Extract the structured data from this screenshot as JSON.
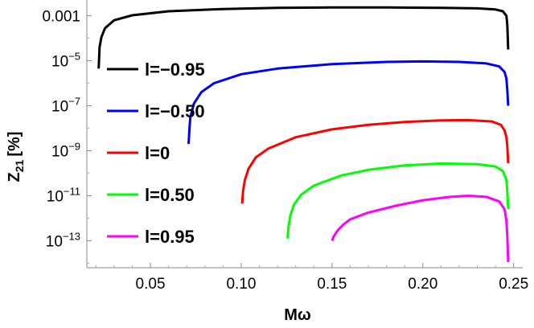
{
  "chart_data": {
    "type": "line",
    "xlabel": "Mω",
    "ylabel_main": "Z",
    "ylabel_sub": "21",
    "ylabel_unit": "[%]",
    "xlim": [
      0.015,
      0.255
    ],
    "ylim_log10": [
      -14.2,
      -2.3
    ],
    "y_scale": "log",
    "x_ticks": [
      {
        "value": 0.05,
        "label": "0.05"
      },
      {
        "value": 0.1,
        "label": "0.10"
      },
      {
        "value": 0.15,
        "label": "0.15"
      },
      {
        "value": 0.2,
        "label": "0.20"
      },
      {
        "value": 0.25,
        "label": "0.25"
      }
    ],
    "y_ticks": [
      {
        "exp": -3,
        "label": "0.001",
        "base": "",
        "sup": ""
      },
      {
        "exp": -5,
        "label": "",
        "base": "10",
        "sup": "−5"
      },
      {
        "exp": -7,
        "label": "",
        "base": "10",
        "sup": "−7"
      },
      {
        "exp": -9,
        "label": "",
        "base": "10",
        "sup": "−9"
      },
      {
        "exp": -11,
        "label": "",
        "base": "10",
        "sup": "−11"
      },
      {
        "exp": -13,
        "label": "",
        "base": "10",
        "sup": "−13"
      }
    ],
    "legend_position": "left-inside",
    "series": [
      {
        "name": "l=−0.95",
        "color": "#000000",
        "x": [
          0.0215,
          0.022,
          0.023,
          0.025,
          0.03,
          0.04,
          0.06,
          0.09,
          0.12,
          0.15,
          0.18,
          0.21,
          0.23,
          0.24,
          0.244,
          0.246,
          0.2465,
          0.247
        ],
        "log10y": [
          -5.35,
          -4.4,
          -3.95,
          -3.55,
          -3.2,
          -2.98,
          -2.8,
          -2.7,
          -2.65,
          -2.63,
          -2.63,
          -2.65,
          -2.67,
          -2.72,
          -2.8,
          -3.0,
          -3.4,
          -4.5
        ]
      },
      {
        "name": "l=−0.50",
        "color": "#0000ff",
        "x": [
          0.071,
          0.0715,
          0.072,
          0.074,
          0.078,
          0.085,
          0.1,
          0.12,
          0.15,
          0.18,
          0.2,
          0.22,
          0.235,
          0.242,
          0.245,
          0.246,
          0.2465,
          0.247
        ],
        "log10y": [
          -8.7,
          -8.0,
          -7.5,
          -6.9,
          -6.4,
          -6.0,
          -5.6,
          -5.35,
          -5.15,
          -5.05,
          -5.03,
          -5.05,
          -5.12,
          -5.25,
          -5.5,
          -5.8,
          -6.3,
          -7.0
        ]
      },
      {
        "name": "l=0",
        "color": "#ff0000",
        "x": [
          0.1005,
          0.101,
          0.102,
          0.104,
          0.108,
          0.115,
          0.13,
          0.15,
          0.17,
          0.19,
          0.21,
          0.225,
          0.238,
          0.243,
          0.245,
          0.246,
          0.2465,
          0.247
        ],
        "log10y": [
          -11.35,
          -10.8,
          -10.3,
          -9.8,
          -9.3,
          -8.9,
          -8.4,
          -8.05,
          -7.85,
          -7.72,
          -7.65,
          -7.64,
          -7.7,
          -7.85,
          -8.1,
          -8.4,
          -8.8,
          -9.55
        ]
      },
      {
        "name": "l=0.50",
        "color": "#00ff00",
        "x": [
          0.1255,
          0.126,
          0.127,
          0.129,
          0.133,
          0.14,
          0.155,
          0.17,
          0.19,
          0.21,
          0.23,
          0.24,
          0.244,
          0.246,
          0.2465,
          0.247
        ],
        "log10y": [
          -12.9,
          -12.4,
          -11.9,
          -11.4,
          -10.95,
          -10.55,
          -10.1,
          -9.85,
          -9.65,
          -9.57,
          -9.6,
          -9.7,
          -9.9,
          -10.3,
          -10.8,
          -11.6
        ]
      },
      {
        "name": "l=0.95",
        "color": "#ff00ff",
        "x": [
          0.15,
          0.151,
          0.153,
          0.156,
          0.16,
          0.17,
          0.185,
          0.2,
          0.215,
          0.225,
          0.235,
          0.242,
          0.245,
          0.246,
          0.2465,
          0.247
        ],
        "log10y": [
          -13.0,
          -12.8,
          -12.55,
          -12.3,
          -12.05,
          -11.75,
          -11.45,
          -11.2,
          -11.05,
          -11.0,
          -11.05,
          -11.25,
          -11.6,
          -12.1,
          -12.8,
          -13.95
        ]
      }
    ]
  }
}
